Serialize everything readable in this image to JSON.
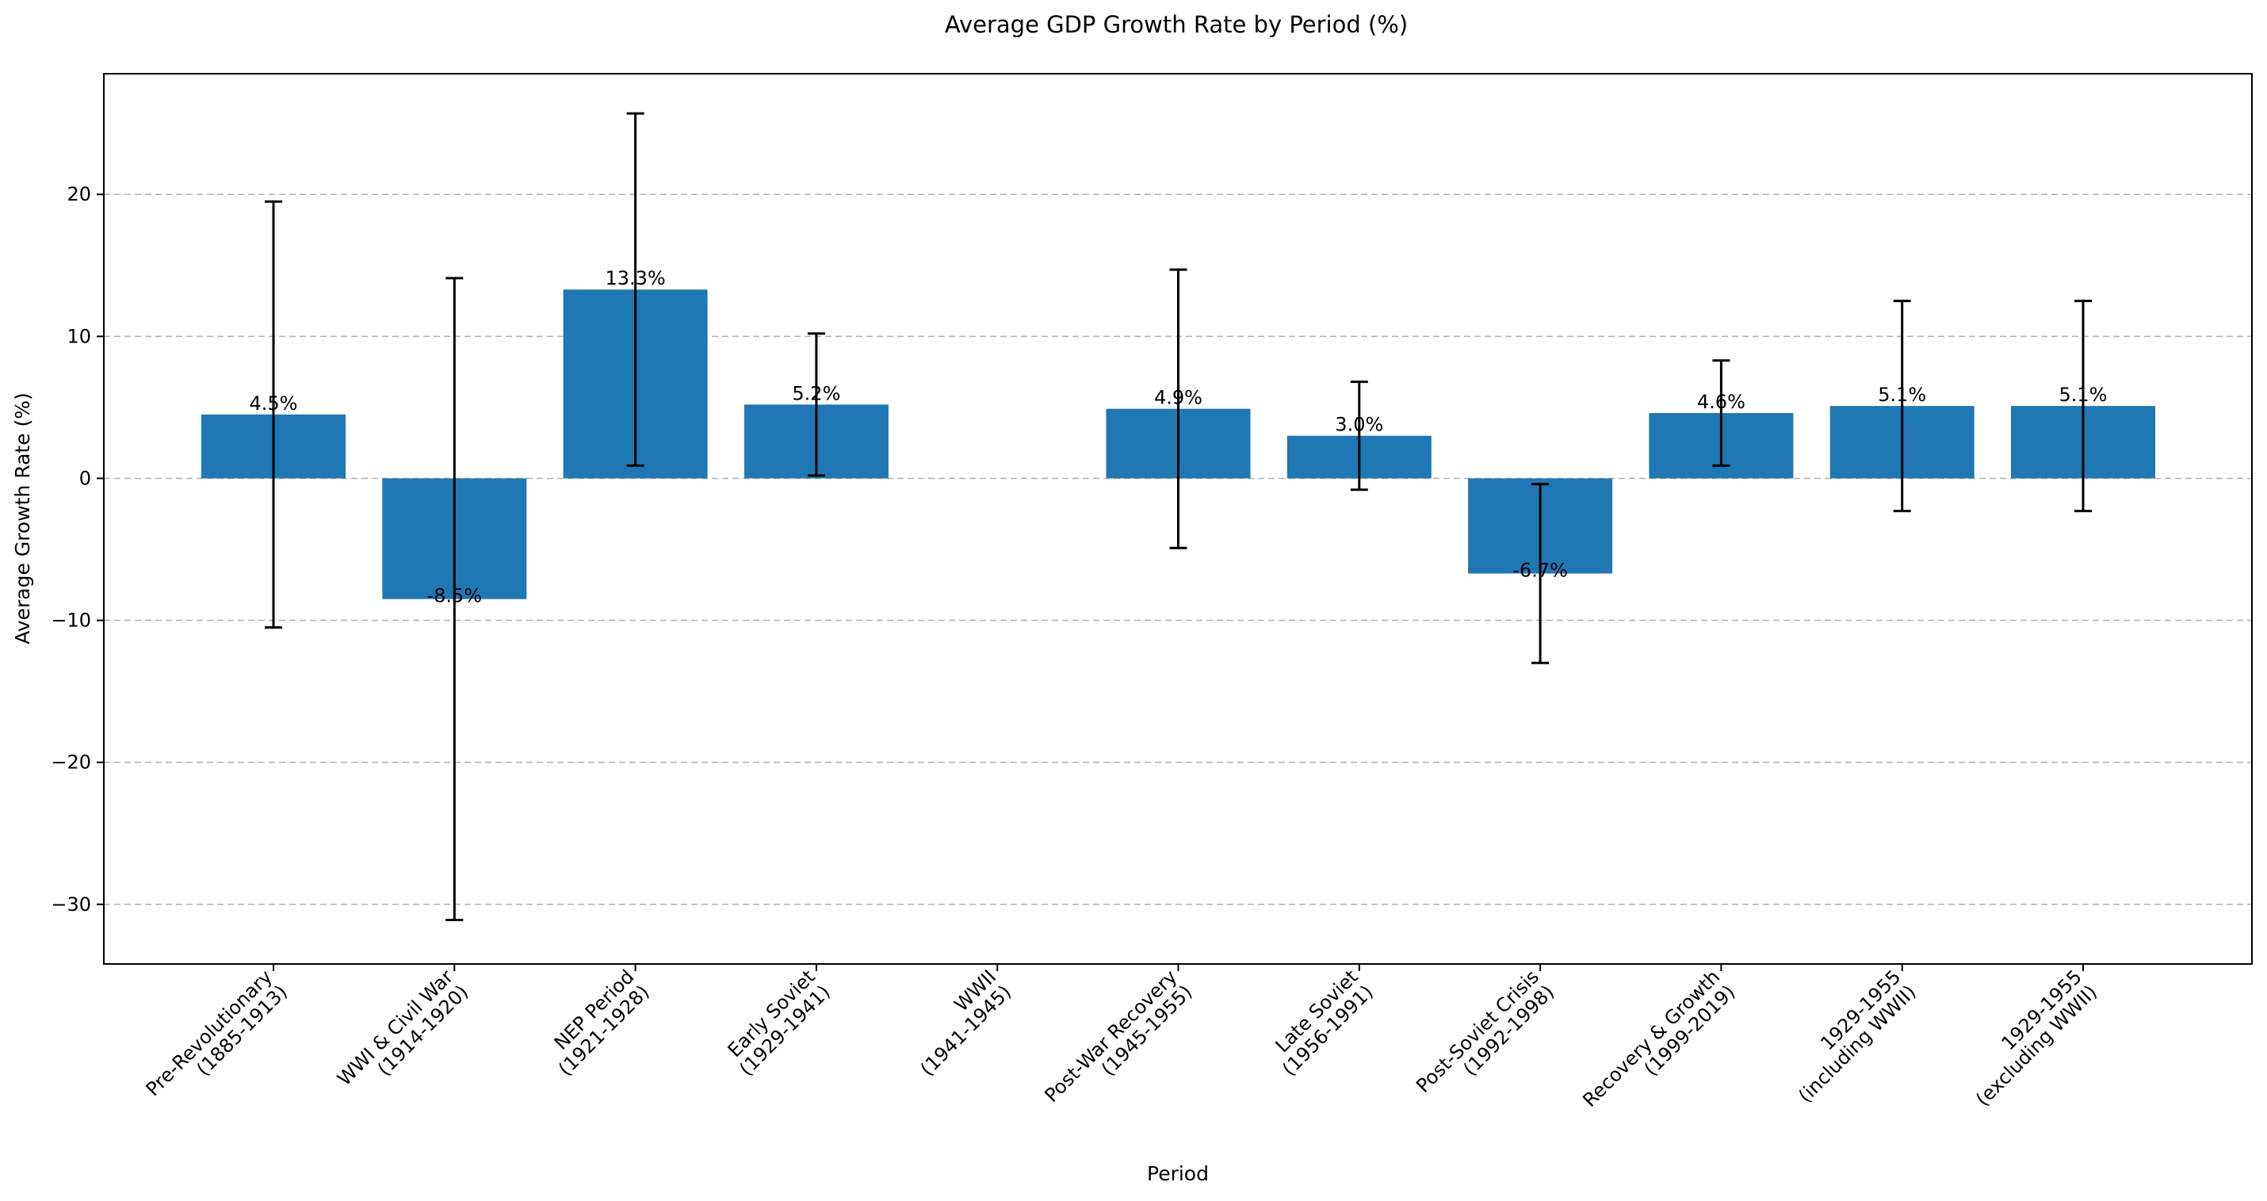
{
  "chart_data": {
    "type": "bar",
    "title": "Average GDP Growth Rate by Period (%)",
    "xlabel": "Period",
    "ylabel": "Average Growth Rate (%)",
    "ylim": [
      -34.2,
      28.5
    ],
    "yticks": [
      {
        "value": -30,
        "label": "−30"
      },
      {
        "value": -20,
        "label": "−20"
      },
      {
        "value": -10,
        "label": "−10"
      },
      {
        "value": 0,
        "label": "0"
      },
      {
        "value": 10,
        "label": "10"
      },
      {
        "value": 20,
        "label": "20"
      }
    ],
    "grid": "y-dashed",
    "bar_color": "#1f77b4",
    "categories": [
      [
        "Pre-Revolutionary",
        "(1885-1913)"
      ],
      [
        "WWI & Civil War",
        "(1914-1920)"
      ],
      [
        "NEP Period",
        "(1921-1928)"
      ],
      [
        "Early Soviet",
        "(1929-1941)"
      ],
      [
        "WWII",
        "(1941-1945)"
      ],
      [
        "Post-War Recovery",
        "(1945-1955)"
      ],
      [
        "Late Soviet",
        "(1956-1991)"
      ],
      [
        "Post-Soviet Crisis",
        "(1992-1998)"
      ],
      [
        "Recovery & Growth",
        "(1999-2019)"
      ],
      [
        "1929-1955",
        "(including WWII)"
      ],
      [
        "1929-1955",
        "(excluding WWII)"
      ]
    ],
    "values": [
      4.5,
      -8.5,
      13.3,
      5.2,
      null,
      4.9,
      3.0,
      -6.7,
      4.6,
      5.1,
      5.1
    ],
    "errors": [
      15.0,
      22.6,
      12.4,
      5.0,
      null,
      9.8,
      3.8,
      6.3,
      3.7,
      7.4,
      7.4
    ],
    "value_labels": [
      "4.5%",
      "-8.5%",
      "13.3%",
      "5.2%",
      "",
      "4.9%",
      "3.0%",
      "-6.7%",
      "4.6%",
      "5.1%",
      "5.1%"
    ]
  }
}
